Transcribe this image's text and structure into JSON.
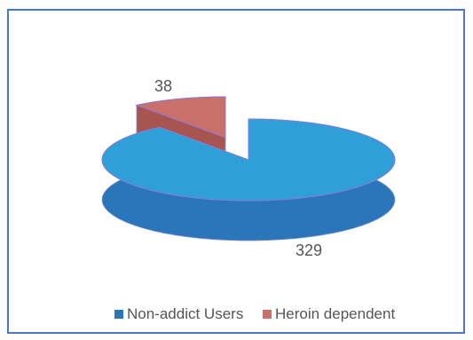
{
  "chart_data": {
    "type": "pie",
    "style": "3d-exploded",
    "slices": [
      {
        "name": "Non-addict Users",
        "value": 329,
        "label": "329",
        "color": "#2f9fd8",
        "side_color": "#2b76bb"
      },
      {
        "name": "Heroin dependent",
        "value": 38,
        "label": "38",
        "color": "#c9706a",
        "side_color": "#a85450"
      }
    ],
    "legend": {
      "position": "bottom"
    }
  }
}
